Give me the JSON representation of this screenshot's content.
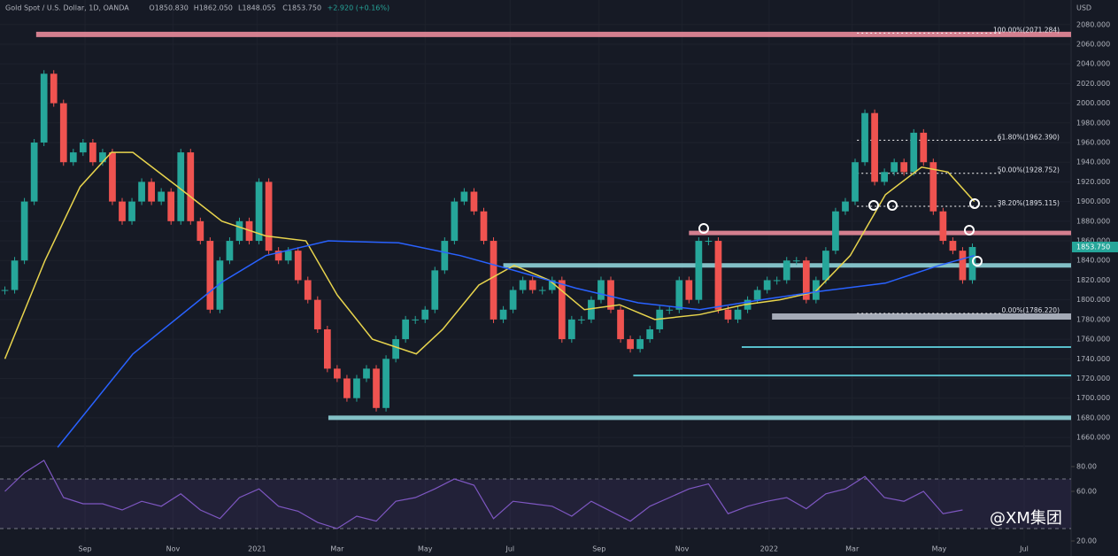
{
  "chart_data": {
    "type": "candlestick",
    "title": "Gold Spot / U.S. Dollar, 1D, OANDA",
    "ohlc": [
      "O1850.830",
      "H1862.050",
      "L1848.055",
      "C1853.750",
      "+2.920 (+0.16%)"
    ],
    "currency": "USD",
    "xlim": [
      -0.5,
      109.1
    ],
    "xticks": [
      {
        "value": 8.2,
        "label": "Sep"
      },
      {
        "value": 17.2,
        "label": "Nov"
      },
      {
        "value": 25.8,
        "label": "2021"
      },
      {
        "value": 34,
        "label": "Mar"
      },
      {
        "value": 43,
        "label": "May"
      },
      {
        "value": 51.7,
        "label": "Jul"
      },
      {
        "value": 60.8,
        "label": "Sep"
      },
      {
        "value": 69.3,
        "label": "Nov"
      },
      {
        "value": 78.2,
        "label": "2022"
      },
      {
        "value": 86.7,
        "label": "Mar"
      },
      {
        "value": 95.6,
        "label": "May"
      },
      {
        "value": 104.3,
        "label": "Jul"
      }
    ],
    "ylim": [
      1652,
      2105
    ],
    "yticks": [
      {
        "value": 1660,
        "label": "1660.000"
      },
      {
        "value": 1680,
        "label": "1680.000"
      },
      {
        "value": 1700,
        "label": "1700.000"
      },
      {
        "value": 1720,
        "label": "1720.000"
      },
      {
        "value": 1740,
        "label": "1740.000"
      },
      {
        "value": 1760,
        "label": "1760.000"
      },
      {
        "value": 1780,
        "label": "1780.000"
      },
      {
        "value": 1800,
        "label": "1800.000"
      },
      {
        "value": 1820,
        "label": "1820.000"
      },
      {
        "value": 1840,
        "label": "1840.000"
      },
      {
        "value": 1860,
        "label": "1860.000"
      },
      {
        "value": 1880,
        "label": "1880.000"
      },
      {
        "value": 1900,
        "label": "1900.000"
      },
      {
        "value": 1920,
        "label": "1920.000"
      },
      {
        "value": 1940,
        "label": "1940.000"
      },
      {
        "value": 1960,
        "label": "1960.000"
      },
      {
        "value": 1980,
        "label": "1980.000"
      },
      {
        "value": 2000,
        "label": "2000.000"
      },
      {
        "value": 2020,
        "label": "2020.000"
      },
      {
        "value": 2040,
        "label": "2040.000"
      },
      {
        "value": 2060,
        "label": "2060.000"
      },
      {
        "value": 2080,
        "label": "2080.000"
      }
    ],
    "up_color": "#26a69a",
    "down_color": "#ef5350",
    "closes": [
      1810,
      1840,
      1900,
      1960,
      2030,
      2000,
      1940,
      1950,
      1960,
      1940,
      1950,
      1900,
      1880,
      1900,
      1920,
      1900,
      1910,
      1880,
      1950,
      1880,
      1860,
      1790,
      1840,
      1860,
      1880,
      1860,
      1920,
      1850,
      1840,
      1850,
      1820,
      1800,
      1770,
      1730,
      1720,
      1700,
      1720,
      1730,
      1690,
      1740,
      1760,
      1780,
      1780,
      1790,
      1830,
      1860,
      1900,
      1910,
      1890,
      1860,
      1780,
      1790,
      1810,
      1820,
      1810,
      1810,
      1820,
      1760,
      1780,
      1780,
      1800,
      1820,
      1790,
      1760,
      1750,
      1760,
      1770,
      1790,
      1790,
      1820,
      1800,
      1860,
      1860,
      1790,
      1780,
      1790,
      1800,
      1810,
      1820,
      1820,
      1840,
      1840,
      1800,
      1820,
      1850,
      1890,
      1900,
      1940,
      1990,
      1920,
      1930,
      1940,
      1930,
      1970,
      1940,
      1890,
      1860,
      1850,
      1820,
      1853.75
    ],
    "last_price": {
      "value": 1853.75,
      "label": "1853.750"
    },
    "moving_averages": [
      {
        "color": "#e8d44d",
        "x": [
          0,
          4.1,
          7.7,
          10.9,
          13.1,
          17.7,
          22.2,
          26.7,
          30.8,
          34,
          37.6,
          42.1,
          44.8,
          48.5,
          52.1,
          55.7,
          59.3,
          62.9,
          66.5,
          71.1,
          75.6,
          79.3,
          82.9,
          86.5,
          90.1,
          93.8,
          96.5,
          99.2
        ],
        "values": [
          1740,
          1840,
          1915,
          1950,
          1950,
          1915,
          1880,
          1865,
          1860,
          1805,
          1760,
          1745,
          1770,
          1815,
          1835,
          1820,
          1790,
          1795,
          1780,
          1785,
          1795,
          1800,
          1808,
          1845,
          1907,
          1935,
          1930,
          1900
        ]
      },
      {
        "color": "#2962ff",
        "x": [
          5.4,
          13.1,
          22.2,
          26.7,
          33.1,
          40.3,
          46.6,
          52.1,
          58.4,
          64.8,
          71.1,
          77.4,
          82.9,
          90.1,
          95.6,
          99.2
        ],
        "values": [
          1650,
          1745,
          1818,
          1845,
          1860,
          1858,
          1845,
          1830,
          1812,
          1797,
          1790,
          1800,
          1808,
          1817,
          1835,
          1845
        ]
      }
    ],
    "levels": [
      {
        "value": 2070,
        "from": 3.2,
        "color": "#e98b9b",
        "width": 6
      },
      {
        "value": 1868,
        "from": 70,
        "color": "#e98b9b",
        "width": 5
      },
      {
        "value": 1835,
        "from": 51,
        "color": "#8fd3d8",
        "width": 5
      },
      {
        "value": 1783,
        "from": 78.5,
        "color": "#b4bac6",
        "width": 7
      },
      {
        "value": 1752,
        "from": 75.4,
        "color": "#5fd0dc",
        "width": 2
      },
      {
        "value": 1723,
        "from": 64.3,
        "color": "#5fd0dc",
        "width": 2
      },
      {
        "value": 1680,
        "from": 33.1,
        "color": "#8fd3d8",
        "width": 5
      }
    ],
    "fibonacci": [
      {
        "value": 2071.284,
        "label": "100.00%(2071.284)"
      },
      {
        "value": 1962.39,
        "label": "61.80%(1962.390)"
      },
      {
        "value": 1928.752,
        "label": "50.00%(1928.752)"
      },
      {
        "value": 1895.115,
        "label": "38.20%(1895.115)"
      },
      {
        "value": 1786.22,
        "label": "0.00%(1786.220)"
      }
    ],
    "fib_from": 87.2,
    "rsi": {
      "ylim": [
        19.3,
        95.7
      ],
      "band": [
        30,
        70
      ],
      "color": "#7e57c2",
      "yticks": [
        {
          "value": 20,
          "label": "20.00"
        },
        {
          "value": 60,
          "label": "60.00"
        },
        {
          "value": 80,
          "label": "80.00"
        }
      ],
      "x": [
        0,
        2,
        4,
        6,
        8,
        10,
        12,
        14,
        16,
        18,
        20,
        22,
        24,
        26,
        28,
        30,
        32,
        34,
        36,
        38,
        40,
        42,
        44,
        46,
        48,
        50,
        52,
        54,
        56,
        58,
        60,
        62,
        64,
        66,
        68,
        70,
        72,
        74,
        76,
        78,
        80,
        82,
        84,
        86,
        88,
        90,
        92,
        94,
        96,
        98
      ],
      "values": [
        60,
        75,
        85,
        55,
        50,
        50,
        45,
        52,
        48,
        58,
        45,
        38,
        55,
        62,
        48,
        44,
        35,
        30,
        40,
        36,
        52,
        55,
        62,
        70,
        65,
        38,
        52,
        50,
        48,
        40,
        52,
        44,
        36,
        48,
        55,
        62,
        66,
        42,
        48,
        52,
        55,
        46,
        58,
        62,
        72,
        55,
        52,
        60,
        42,
        45
      ]
    },
    "watermark": "@XM集团"
  }
}
